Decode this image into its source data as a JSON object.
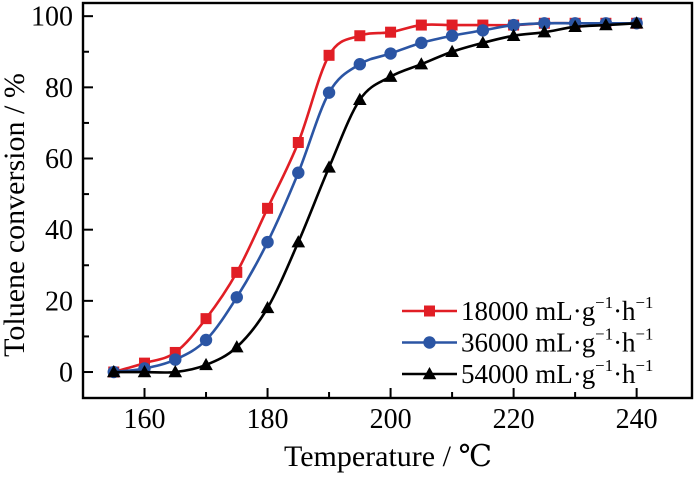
{
  "figure": {
    "background": "#ffffff",
    "frame_color": "#000000",
    "text_color": "#000000"
  },
  "chart_data": {
    "type": "line",
    "title": "",
    "xlabel": "Temperature / ℃",
    "ylabel": "Toluene conversion / %",
    "xlim": [
      150,
      249
    ],
    "ylim": [
      -7.3,
      103.7
    ],
    "x_major_ticks": [
      160,
      180,
      200,
      220,
      240
    ],
    "x_minor_ticks": [
      170,
      190,
      210,
      230
    ],
    "y_major_ticks": [
      0,
      20,
      40,
      60,
      80,
      100
    ],
    "y_minor_ticks": [
      10,
      30,
      50,
      70,
      90
    ],
    "grid": "off",
    "legend_position": "inside-lower-right",
    "x": [
      155,
      160,
      165,
      170,
      175,
      180,
      185,
      190,
      195,
      200,
      205,
      210,
      215,
      220,
      225,
      230,
      235,
      240
    ],
    "series": [
      {
        "name": "18000 mL·g⁻¹·h⁻¹",
        "color": "#e11e25",
        "marker": "square",
        "values": [
          0,
          2.5,
          5.5,
          15,
          28,
          46,
          64.5,
          89,
          94.5,
          95.5,
          97.5,
          97.5,
          97.5,
          97.5,
          98,
          98,
          98,
          98
        ]
      },
      {
        "name": "36000 mL·g⁻¹·h⁻¹",
        "color": "#2b55a4",
        "marker": "circle",
        "values": [
          0,
          1,
          3.5,
          9,
          21,
          36.5,
          56,
          78.5,
          86.5,
          89.5,
          92.5,
          94.5,
          96,
          97.5,
          98,
          98,
          98,
          98
        ]
      },
      {
        "name": "54000 mL·g⁻¹·h⁻¹",
        "color": "#000000",
        "marker": "triangle",
        "values": [
          0,
          0,
          0,
          2,
          7,
          18,
          36.5,
          57.5,
          76.5,
          83,
          86.5,
          90,
          92.5,
          94.5,
          95.5,
          97,
          97.5,
          98
        ]
      }
    ]
  }
}
